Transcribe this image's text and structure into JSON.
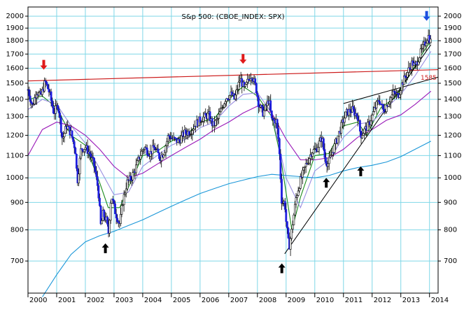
{
  "chart_data": {
    "type": "candlestick",
    "title": "S&p 500: (CBOE_INDEX: SPX)",
    "y_scale": "log",
    "ylim": [
      610,
      2080
    ],
    "y_ticks": [
      700,
      800,
      900,
      1000,
      1100,
      1200,
      1300,
      1400,
      1500,
      1600,
      1700,
      1800,
      1900,
      2000
    ],
    "xlim": [
      2000.0,
      2014.3
    ],
    "x_ticks": [
      "2000",
      "2001",
      "2002",
      "2003",
      "2004",
      "2005",
      "2006",
      "2007",
      "2008",
      "2009",
      "2010",
      "2011",
      "2012",
      "2013",
      "2014"
    ],
    "grid": true,
    "colors": {
      "background": "#ffffff",
      "grid": "#7fd7e7",
      "candle_up": "#ffffff",
      "candle_down": "#1f1fe0",
      "candle_outline": "#000000",
      "ma_short": "#1a8a1a",
      "ma_medium": "#9a8ee0",
      "ma_long": "#9a1ab8",
      "ma_very_long": "#1a96d8",
      "resistance_line": "#cc1a1a",
      "trendline": "#000000",
      "arrow_red": "#e01a1a",
      "arrow_blue": "#1a4fe0",
      "arrow_black": "#000000"
    },
    "price_path": [
      [
        2000.0,
        1460
      ],
      [
        2000.15,
        1360
      ],
      [
        2000.3,
        1450
      ],
      [
        2000.45,
        1420
      ],
      [
        2000.6,
        1510
      ],
      [
        2000.75,
        1440
      ],
      [
        2000.9,
        1320
      ],
      [
        2001.05,
        1370
      ],
      [
        2001.2,
        1180
      ],
      [
        2001.35,
        1250
      ],
      [
        2001.5,
        1210
      ],
      [
        2001.65,
        1130
      ],
      [
        2001.72,
        980
      ],
      [
        2001.85,
        1130
      ],
      [
        2002.0,
        1140
      ],
      [
        2002.15,
        1110
      ],
      [
        2002.3,
        1060
      ],
      [
        2002.45,
        950
      ],
      [
        2002.55,
        800
      ],
      [
        2002.6,
        860
      ],
      [
        2002.75,
        830
      ],
      [
        2002.8,
        780
      ],
      [
        2002.9,
        930
      ],
      [
        2003.05,
        860
      ],
      [
        2003.2,
        820
      ],
      [
        2003.3,
        900
      ],
      [
        2003.45,
        980
      ],
      [
        2003.6,
        1000
      ],
      [
        2003.75,
        1040
      ],
      [
        2003.9,
        1100
      ],
      [
        2004.05,
        1140
      ],
      [
        2004.25,
        1110
      ],
      [
        2004.4,
        1140
      ],
      [
        2004.6,
        1090
      ],
      [
        2004.75,
        1120
      ],
      [
        2004.9,
        1200
      ],
      [
        2005.05,
        1180
      ],
      [
        2005.25,
        1170
      ],
      [
        2005.45,
        1210
      ],
      [
        2005.65,
        1220
      ],
      [
        2005.85,
        1260
      ],
      [
        2006.05,
        1290
      ],
      [
        2006.3,
        1310
      ],
      [
        2006.45,
        1250
      ],
      [
        2006.6,
        1280
      ],
      [
        2006.9,
        1410
      ],
      [
        2007.1,
        1430
      ],
      [
        2007.2,
        1400
      ],
      [
        2007.4,
        1530
      ],
      [
        2007.55,
        1460
      ],
      [
        2007.7,
        1530
      ],
      [
        2007.8,
        1560
      ],
      [
        2007.95,
        1470
      ],
      [
        2008.05,
        1370
      ],
      [
        2008.2,
        1320
      ],
      [
        2008.4,
        1400
      ],
      [
        2008.5,
        1280
      ],
      [
        2008.65,
        1280
      ],
      [
        2008.75,
        1160
      ],
      [
        2008.85,
        900
      ],
      [
        2008.95,
        900
      ],
      [
        2009.0,
        830
      ],
      [
        2009.1,
        740
      ],
      [
        2009.2,
        800
      ],
      [
        2009.35,
        920
      ],
      [
        2009.5,
        990
      ],
      [
        2009.7,
        1060
      ],
      [
        2009.9,
        1120
      ],
      [
        2010.05,
        1130
      ],
      [
        2010.25,
        1190
      ],
      [
        2010.35,
        1090
      ],
      [
        2010.45,
        1060
      ],
      [
        2010.6,
        1110
      ],
      [
        2010.75,
        1170
      ],
      [
        2010.95,
        1260
      ],
      [
        2011.1,
        1320
      ],
      [
        2011.3,
        1340
      ],
      [
        2011.5,
        1300
      ],
      [
        2011.6,
        1200
      ],
      [
        2011.75,
        1230
      ],
      [
        2011.9,
        1260
      ],
      [
        2012.1,
        1350
      ],
      [
        2012.25,
        1400
      ],
      [
        2012.4,
        1330
      ],
      [
        2012.55,
        1380
      ],
      [
        2012.75,
        1440
      ],
      [
        2012.9,
        1420
      ],
      [
        2013.05,
        1500
      ],
      [
        2013.2,
        1560
      ],
      [
        2013.4,
        1640
      ],
      [
        2013.5,
        1610
      ],
      [
        2013.65,
        1690
      ],
      [
        2013.8,
        1760
      ],
      [
        2013.95,
        1840
      ],
      [
        2014.05,
        1790
      ]
    ],
    "moving_averages": [
      {
        "key": "ma_short",
        "points": [
          [
            2000.0,
            1400
          ],
          [
            2000.5,
            1420
          ],
          [
            2001.0,
            1350
          ],
          [
            2001.5,
            1200
          ],
          [
            2002.0,
            1150
          ],
          [
            2002.5,
            980
          ],
          [
            2002.8,
            880
          ],
          [
            2003.2,
            880
          ],
          [
            2003.5,
            960
          ],
          [
            2004.0,
            1100
          ],
          [
            2004.5,
            1120
          ],
          [
            2005.0,
            1170
          ],
          [
            2005.5,
            1200
          ],
          [
            2006.0,
            1270
          ],
          [
            2006.5,
            1290
          ],
          [
            2007.0,
            1400
          ],
          [
            2007.5,
            1480
          ],
          [
            2008.0,
            1420
          ],
          [
            2008.5,
            1300
          ],
          [
            2008.8,
            1100
          ],
          [
            2009.2,
            800
          ],
          [
            2009.5,
            920
          ],
          [
            2010.0,
            1100
          ],
          [
            2010.5,
            1110
          ],
          [
            2011.0,
            1250
          ],
          [
            2011.5,
            1270
          ],
          [
            2011.8,
            1200
          ],
          [
            2012.3,
            1350
          ],
          [
            2012.8,
            1410
          ],
          [
            2013.3,
            1550
          ],
          [
            2013.8,
            1720
          ],
          [
            2014.05,
            1800
          ]
        ]
      },
      {
        "key": "ma_medium",
        "points": [
          [
            2000.0,
            1340
          ],
          [
            2000.5,
            1400
          ],
          [
            2001.0,
            1370
          ],
          [
            2001.5,
            1250
          ],
          [
            2002.0,
            1160
          ],
          [
            2002.5,
            1040
          ],
          [
            2003.0,
            930
          ],
          [
            2003.5,
            940
          ],
          [
            2004.0,
            1050
          ],
          [
            2004.5,
            1100
          ],
          [
            2005.0,
            1150
          ],
          [
            2005.5,
            1180
          ],
          [
            2006.0,
            1240
          ],
          [
            2006.5,
            1270
          ],
          [
            2007.0,
            1360
          ],
          [
            2007.5,
            1430
          ],
          [
            2008.0,
            1440
          ],
          [
            2008.5,
            1320
          ],
          [
            2009.0,
            1000
          ],
          [
            2009.5,
            880
          ],
          [
            2010.0,
            1030
          ],
          [
            2010.5,
            1080
          ],
          [
            2011.0,
            1190
          ],
          [
            2011.5,
            1260
          ],
          [
            2012.0,
            1270
          ],
          [
            2012.5,
            1350
          ],
          [
            2013.0,
            1430
          ],
          [
            2013.5,
            1550
          ],
          [
            2014.05,
            1720
          ]
        ]
      },
      {
        "key": "ma_long",
        "points": [
          [
            2000.0,
            1100
          ],
          [
            2000.5,
            1230
          ],
          [
            2001.0,
            1270
          ],
          [
            2001.5,
            1250
          ],
          [
            2002.0,
            1200
          ],
          [
            2002.5,
            1130
          ],
          [
            2003.0,
            1050
          ],
          [
            2003.5,
            1000
          ],
          [
            2004.0,
            1020
          ],
          [
            2004.5,
            1060
          ],
          [
            2005.0,
            1100
          ],
          [
            2005.5,
            1140
          ],
          [
            2006.0,
            1180
          ],
          [
            2006.5,
            1230
          ],
          [
            2007.0,
            1270
          ],
          [
            2007.5,
            1320
          ],
          [
            2008.0,
            1360
          ],
          [
            2008.5,
            1320
          ],
          [
            2009.0,
            1180
          ],
          [
            2009.5,
            1080
          ],
          [
            2010.0,
            1080
          ],
          [
            2010.5,
            1090
          ],
          [
            2011.0,
            1130
          ],
          [
            2011.5,
            1190
          ],
          [
            2012.0,
            1230
          ],
          [
            2012.5,
            1280
          ],
          [
            2013.0,
            1310
          ],
          [
            2013.5,
            1370
          ],
          [
            2014.05,
            1450
          ]
        ]
      },
      {
        "key": "ma_very_long",
        "points": [
          [
            2000.5,
            600
          ],
          [
            2001.0,
            660
          ],
          [
            2001.5,
            720
          ],
          [
            2002.0,
            760
          ],
          [
            2002.5,
            780
          ],
          [
            2003.0,
            795
          ],
          [
            2003.5,
            815
          ],
          [
            2004.0,
            835
          ],
          [
            2004.5,
            860
          ],
          [
            2005.0,
            885
          ],
          [
            2005.5,
            910
          ],
          [
            2006.0,
            935
          ],
          [
            2006.5,
            955
          ],
          [
            2007.0,
            975
          ],
          [
            2007.5,
            990
          ],
          [
            2008.0,
            1005
          ],
          [
            2008.5,
            1015
          ],
          [
            2009.0,
            1010
          ],
          [
            2009.5,
            1005
          ],
          [
            2010.0,
            1000
          ],
          [
            2010.5,
            1010
          ],
          [
            2011.0,
            1030
          ],
          [
            2011.5,
            1045
          ],
          [
            2012.0,
            1055
          ],
          [
            2012.5,
            1070
          ],
          [
            2013.0,
            1095
          ],
          [
            2013.5,
            1130
          ],
          [
            2014.05,
            1170
          ]
        ]
      }
    ],
    "resistance_line": {
      "label": "1585",
      "points": [
        [
          2000.0,
          1515
        ],
        [
          2014.3,
          1590
        ]
      ]
    },
    "trendlines": [
      {
        "points": [
          [
            2008.95,
            722
          ],
          [
            2014.05,
            1770
          ]
        ]
      },
      {
        "points": [
          [
            2011.0,
            1375
          ],
          [
            2014.3,
            1540
          ]
        ]
      }
    ],
    "arrows": [
      {
        "color_key": "arrow_red",
        "direction": "down",
        "x": 2000.55,
        "y": 1590
      },
      {
        "color_key": "arrow_red",
        "direction": "down",
        "x": 2007.5,
        "y": 1630
      },
      {
        "color_key": "arrow_blue",
        "direction": "down",
        "x": 2013.9,
        "y": 1960
      },
      {
        "color_key": "arrow_black",
        "direction": "up",
        "x": 2002.7,
        "y": 755
      },
      {
        "color_key": "arrow_black",
        "direction": "up",
        "x": 2008.85,
        "y": 693
      },
      {
        "color_key": "arrow_black",
        "direction": "up",
        "x": 2010.4,
        "y": 1000
      },
      {
        "color_key": "arrow_black",
        "direction": "up",
        "x": 2011.6,
        "y": 1050
      }
    ]
  }
}
